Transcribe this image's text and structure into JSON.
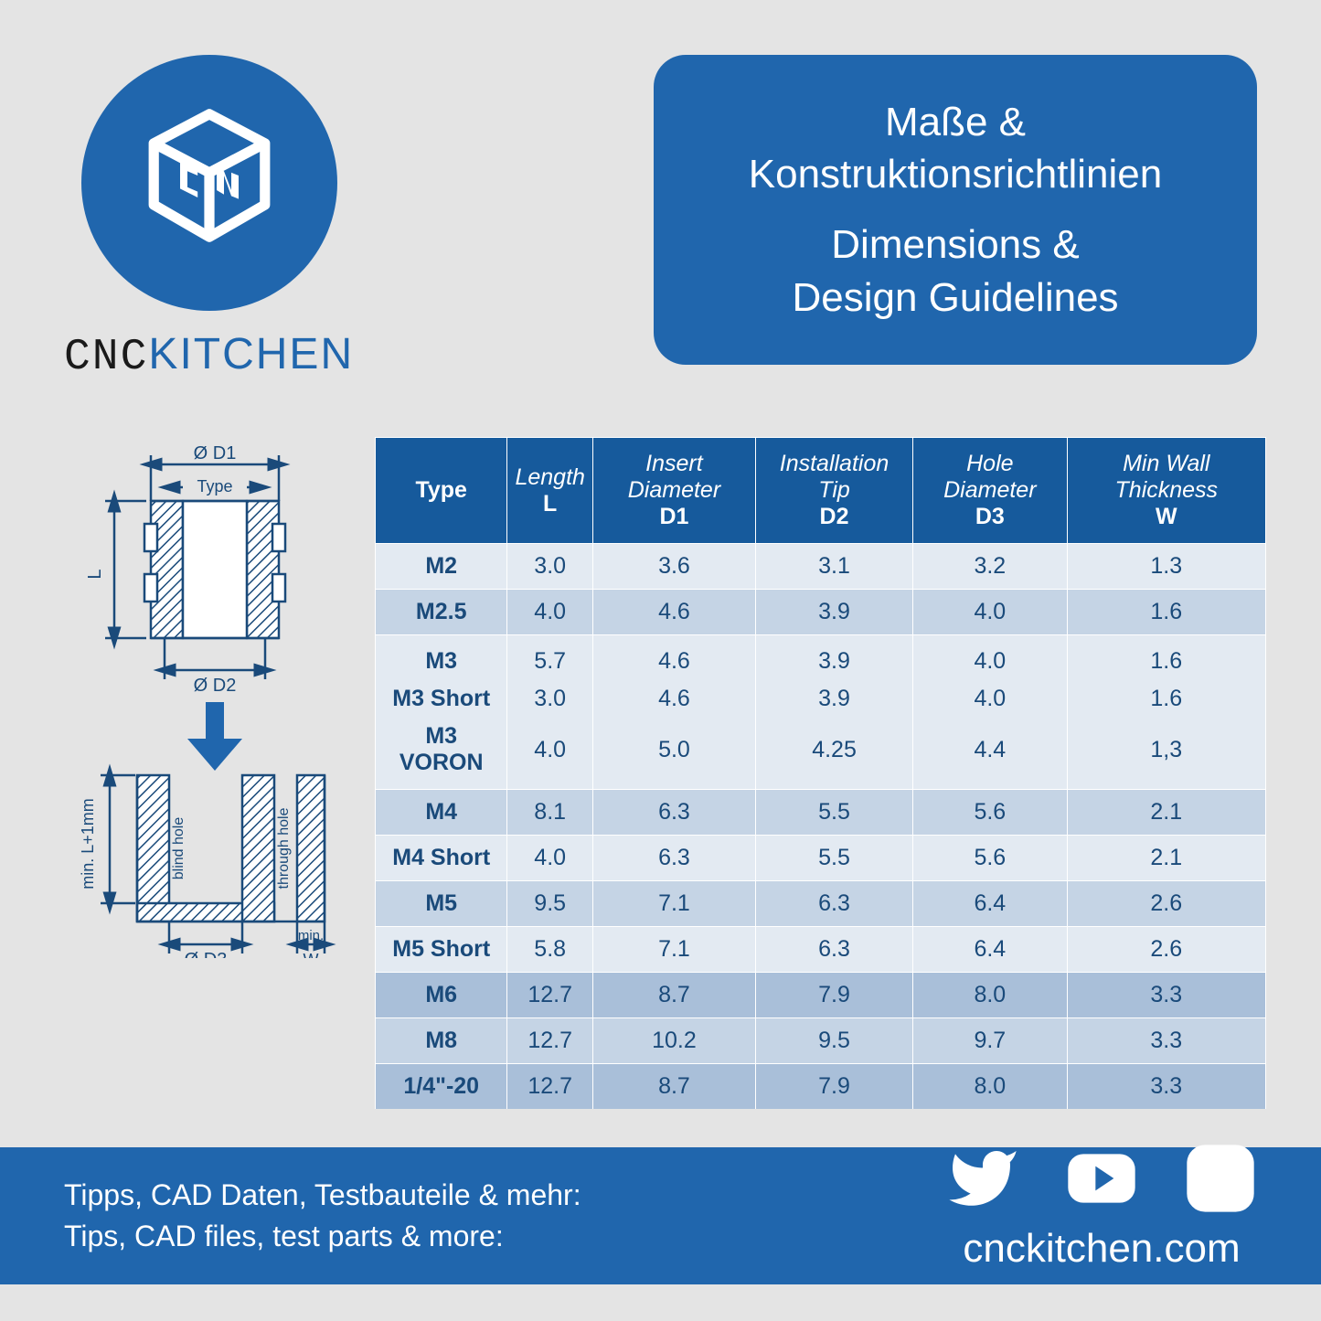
{
  "brand": {
    "part1": "CNC",
    "part2": "KITCHEN"
  },
  "title": {
    "de_line1": "Maße &",
    "de_line2": "Konstruktionsrichtlinien",
    "en_line1": "Dimensions &",
    "en_line2": "Design Guidelines"
  },
  "diagram": {
    "d1": "Ø D1",
    "type": "Type",
    "L": "L",
    "d2": "Ø D2",
    "minL": "min. L+1mm",
    "blind": "blind hole",
    "through": "through hole",
    "d3": "Ø D3",
    "minW": "min.",
    "W": "W"
  },
  "table": {
    "headers": {
      "type": "Type",
      "l_top": "Length",
      "l_sub": "L",
      "d1_top": "Insert Diameter",
      "d1_sub": "D1",
      "d2_top": "Installation Tip",
      "d2_sub": "D2",
      "d3_top": "Hole Diameter",
      "d3_sub": "D3",
      "w_top": "Min Wall Thickness",
      "w_sub": "W"
    },
    "rows": [
      {
        "cls": "r-light",
        "t": "M2",
        "l": "3.0",
        "d1": "3.6",
        "d2": "3.1",
        "d3": "3.2",
        "w": "1.3"
      },
      {
        "cls": "r-med",
        "t": "M2.5",
        "l": "4.0",
        "d1": "4.6",
        "d2": "3.9",
        "d3": "4.0",
        "w": "1.6"
      },
      {
        "cls": "r-light grp grp-first",
        "t": "M3",
        "l": "5.7",
        "d1": "4.6",
        "d2": "3.9",
        "d3": "4.0",
        "w": "1.6"
      },
      {
        "cls": "r-light grp no-top",
        "t": "M3 Short",
        "l": "3.0",
        "d1": "4.6",
        "d2": "3.9",
        "d3": "4.0",
        "w": "1.6"
      },
      {
        "cls": "r-light grp grp-last no-top",
        "t": "M3 VORON",
        "l": "4.0",
        "d1": "5.0",
        "d2": "4.25",
        "d3": "4.4",
        "w": "1,3"
      },
      {
        "cls": "r-med",
        "t": "M4",
        "l": "8.1",
        "d1": "6.3",
        "d2": "5.5",
        "d3": "5.6",
        "w": "2.1"
      },
      {
        "cls": "r-light",
        "t": "M4 Short",
        "l": "4.0",
        "d1": "6.3",
        "d2": "5.5",
        "d3": "5.6",
        "w": "2.1"
      },
      {
        "cls": "r-med",
        "t": "M5",
        "l": "9.5",
        "d1": "7.1",
        "d2": "6.3",
        "d3": "6.4",
        "w": "2.6"
      },
      {
        "cls": "r-light",
        "t": "M5 Short",
        "l": "5.8",
        "d1": "7.1",
        "d2": "6.3",
        "d3": "6.4",
        "w": "2.6"
      },
      {
        "cls": "r-dark",
        "t": "M6",
        "l": "12.7",
        "d1": "8.7",
        "d2": "7.9",
        "d3": "8.0",
        "w": "3.3"
      },
      {
        "cls": "r-med",
        "t": "M8",
        "l": "12.7",
        "d1": "10.2",
        "d2": "9.5",
        "d3": "9.7",
        "w": "3.3"
      },
      {
        "cls": "r-dark",
        "t": "1/4\"-20",
        "l": "12.7",
        "d1": "8.7",
        "d2": "7.9",
        "d3": "8.0",
        "w": "3.3"
      }
    ]
  },
  "footer": {
    "de": "Tipps, CAD Daten, Testbauteile & mehr:",
    "en": "Tips, CAD files, test parts & more:",
    "url": "cnckitchen.com"
  },
  "colors": {
    "brand_blue": "#2066ad",
    "table_header": "#165a9c"
  }
}
